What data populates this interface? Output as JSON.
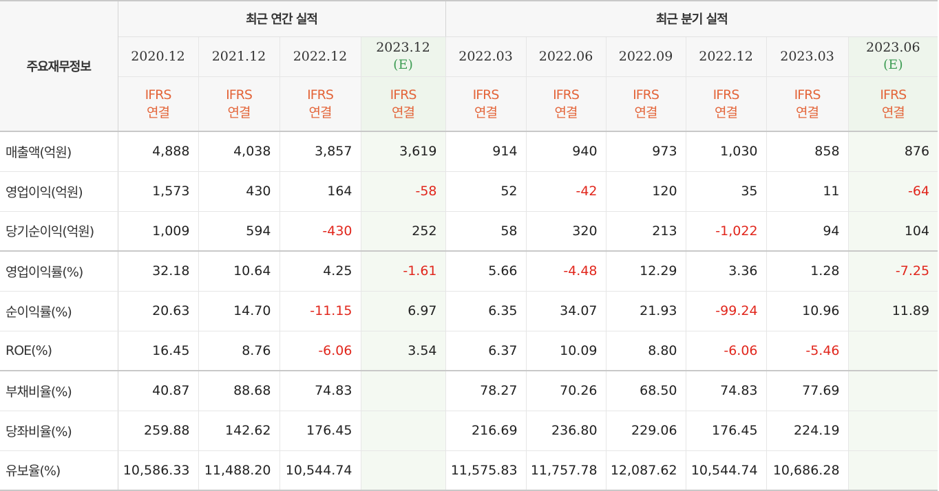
{
  "header": {
    "title": "주요재무정보",
    "annual_group": "최근 연간 실적",
    "quarter_group": "최근 분기 실적"
  },
  "annual": [
    {
      "period": "2020.12",
      "est": "",
      "basis": [
        "IFRS",
        "연결"
      ]
    },
    {
      "period": "2021.12",
      "est": "",
      "basis": [
        "IFRS",
        "연결"
      ]
    },
    {
      "period": "2022.12",
      "est": "",
      "basis": [
        "IFRS",
        "연결"
      ]
    },
    {
      "period": "2023.12",
      "est": "(E)",
      "basis": [
        "IFRS",
        "연결"
      ]
    }
  ],
  "quarter": [
    {
      "period": "2022.03",
      "est": "",
      "basis": [
        "IFRS",
        "연결"
      ]
    },
    {
      "period": "2022.06",
      "est": "",
      "basis": [
        "IFRS",
        "연결"
      ]
    },
    {
      "period": "2022.09",
      "est": "",
      "basis": [
        "IFRS",
        "연결"
      ]
    },
    {
      "period": "2022.12",
      "est": "",
      "basis": [
        "IFRS",
        "연결"
      ]
    },
    {
      "period": "2023.03",
      "est": "",
      "basis": [
        "IFRS",
        "연결"
      ]
    },
    {
      "period": "2023.06",
      "est": "(E)",
      "basis": [
        "IFRS",
        "연결"
      ]
    }
  ],
  "rows": [
    {
      "label": "매출액(억원)",
      "values": [
        "4,888",
        "4,038",
        "3,857",
        "3,619",
        "914",
        "940",
        "973",
        "1,030",
        "858",
        "876"
      ]
    },
    {
      "label": "영업이익(억원)",
      "values": [
        "1,573",
        "430",
        "164",
        "-58",
        "52",
        "-42",
        "120",
        "35",
        "11",
        "-64"
      ]
    },
    {
      "label": "당기순이익(억원)",
      "values": [
        "1,009",
        "594",
        "-430",
        "252",
        "58",
        "320",
        "213",
        "-1,022",
        "94",
        "104"
      ]
    },
    {
      "label": "영업이익률(%)",
      "values": [
        "32.18",
        "10.64",
        "4.25",
        "-1.61",
        "5.66",
        "-4.48",
        "12.29",
        "3.36",
        "1.28",
        "-7.25"
      ]
    },
    {
      "label": "순이익률(%)",
      "values": [
        "20.63",
        "14.70",
        "-11.15",
        "6.97",
        "6.35",
        "34.07",
        "21.93",
        "-99.24",
        "10.96",
        "11.89"
      ]
    },
    {
      "label": "ROE(%)",
      "values": [
        "16.45",
        "8.76",
        "-6.06",
        "3.54",
        "6.37",
        "10.09",
        "8.80",
        "-6.06",
        "-5.46",
        ""
      ]
    },
    {
      "label": "부채비율(%)",
      "values": [
        "40.87",
        "88.68",
        "74.83",
        "",
        "78.27",
        "70.26",
        "68.50",
        "74.83",
        "77.69",
        ""
      ]
    },
    {
      "label": "당좌비율(%)",
      "values": [
        "259.88",
        "142.62",
        "176.45",
        "",
        "216.69",
        "236.80",
        "229.06",
        "176.45",
        "224.19",
        ""
      ]
    },
    {
      "label": "유보율(%)",
      "values": [
        "10,586.33",
        "11,488.20",
        "10,544.74",
        "",
        "11,575.83",
        "11,757.78",
        "12,087.62",
        "10,544.74",
        "10,686.28",
        ""
      ]
    }
  ],
  "colors": {
    "negative": "#e1261c",
    "basis": "#e3653a",
    "estimate": "#3f9d55"
  }
}
